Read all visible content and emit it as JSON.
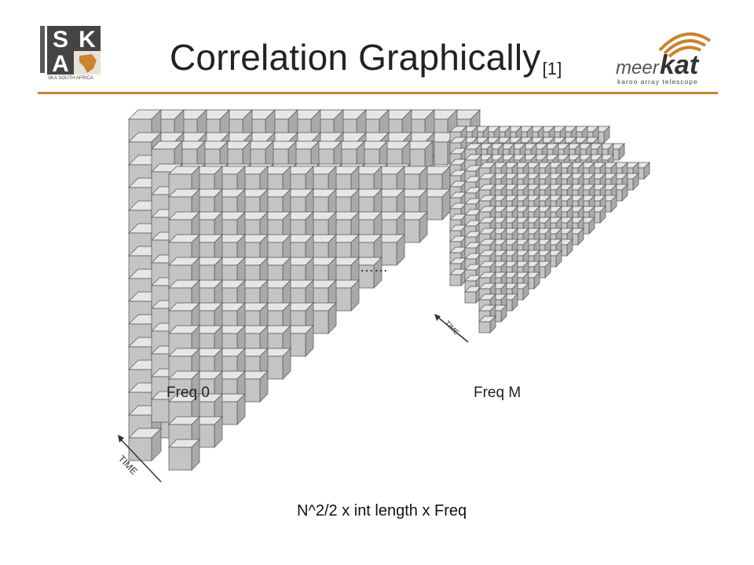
{
  "title": {
    "main": "Correlation Graphically",
    "ref": "[1]"
  },
  "logos": {
    "ska": {
      "letters": "SKA",
      "caption": "SKA SOUTH AFRICA"
    },
    "meerkat": {
      "wordmark_a": "meer",
      "wordmark_b": "kat",
      "tagline": "karoo array telescope"
    }
  },
  "diagram": {
    "left_label": "Freq 0",
    "right_label": "Freq M",
    "ellipsis": "……",
    "time_label_left": "TIME",
    "time_label_right": "TIME"
  },
  "formula": "N^2/2 x  int length x Freq",
  "colors": {
    "accent_rule": "#c8842e",
    "cube_face": "#c4c4c4",
    "cube_top": "#e6e6e6",
    "cube_side": "#a9a9a9"
  }
}
